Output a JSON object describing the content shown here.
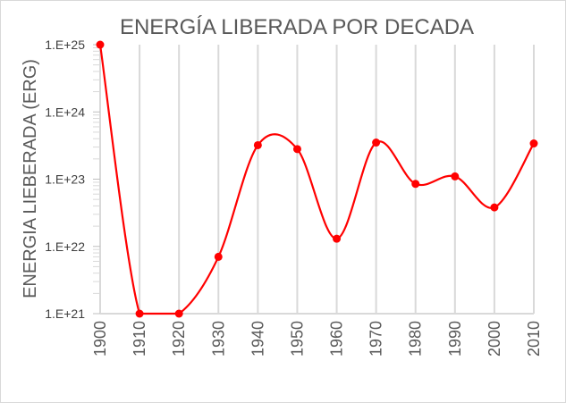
{
  "chart_data": {
    "type": "line",
    "title": "ENERGÍA LIBERADA POR DECADA",
    "xlabel": "",
    "ylabel": "ENERGIA LIEBERADA (ERG)",
    "y_scale": "log",
    "ylim": [
      1e+21,
      1e+25
    ],
    "y_ticks": [
      {
        "value": 1e+25,
        "label": "1.E+25"
      },
      {
        "value": 1e+24,
        "label": "1.E+24"
      },
      {
        "value": 1e+23,
        "label": "1.E+23"
      },
      {
        "value": 1e+22,
        "label": "1.E+22"
      },
      {
        "value": 1e+21,
        "label": "1.E+21"
      }
    ],
    "categories": [
      "1900",
      "1910",
      "1920",
      "1930",
      "1940",
      "1950",
      "1960",
      "1970",
      "1980",
      "1990",
      "2000",
      "2010"
    ],
    "series": [
      {
        "values": [
          1e+25,
          1e+21,
          1e+21,
          7e+21,
          3.2e+23,
          2.8e+23,
          1.3e+22,
          3.5e+23,
          8.5e+22,
          1.1e+23,
          3.8e+22,
          3.4e+23
        ],
        "color": "#ff0000",
        "smooth": true
      }
    ],
    "grid": true,
    "legend": "none"
  }
}
